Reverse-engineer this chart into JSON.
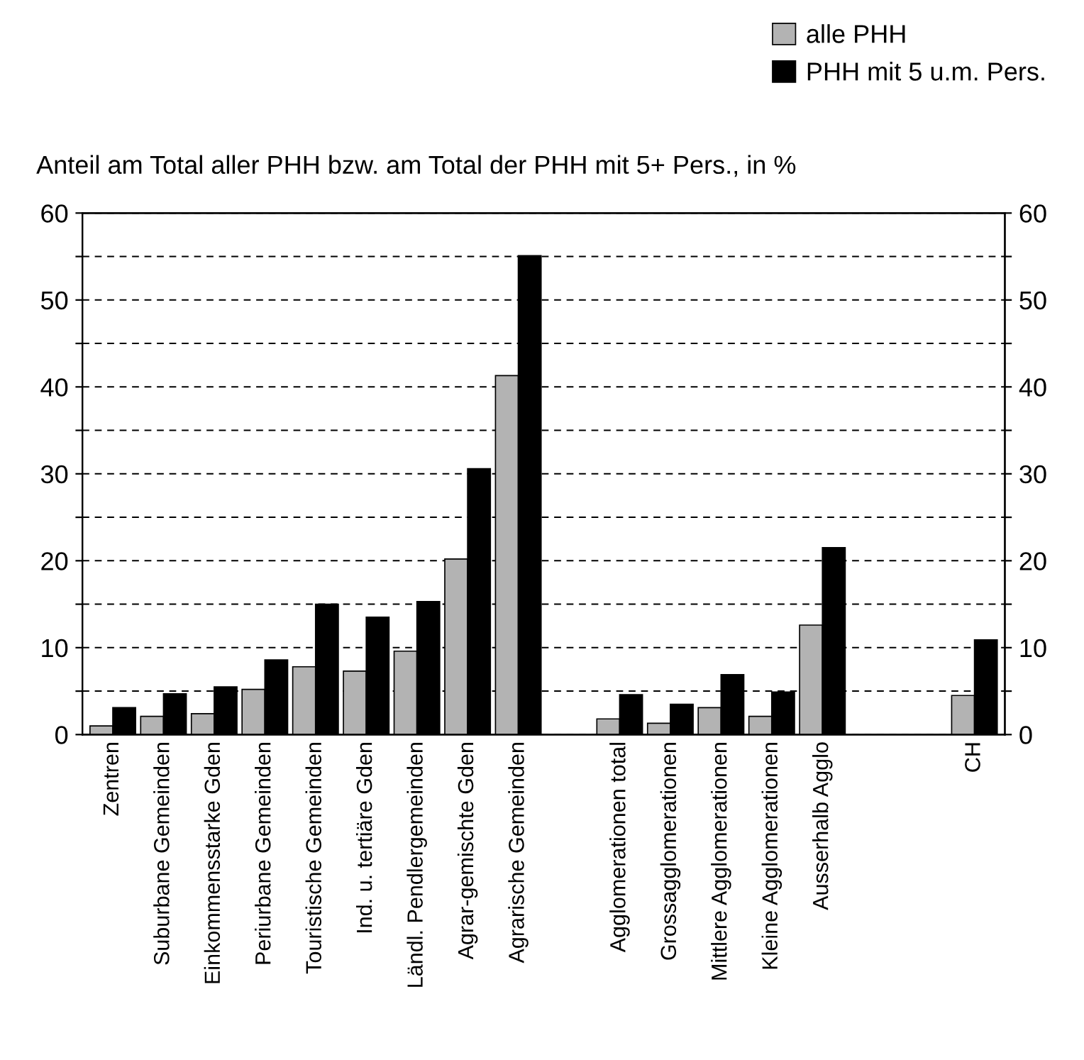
{
  "chart_data": {
    "type": "bar",
    "title": "Anteil am Total aller PHH bzw. am Total der PHH mit 5+ Pers., in %",
    "categories": [
      "Zentren",
      "Suburbane Gemeinden",
      "Einkommensstarke Gden",
      "Periurbane Gemeinden",
      "Touristische Gemeinden",
      "Ind. u. tertiäre Gden",
      "Ländl. Pendlergemeinden",
      "Agrar-gemischte Gden",
      "Agrarische Gemeinden",
      null,
      "Agglomerationen total",
      "Grossagglomerationen",
      "Mittlere Agglomerationen",
      "Kleine Agglomerationen",
      "Ausserhalb Agglo",
      null,
      null,
      "CH"
    ],
    "series": [
      {
        "name": "alle PHH",
        "color": "#b3b3b3",
        "values": [
          1.0,
          2.1,
          2.4,
          5.2,
          7.8,
          7.3,
          9.6,
          20.2,
          41.3,
          null,
          1.8,
          1.3,
          3.1,
          2.1,
          12.6,
          null,
          null,
          4.5
        ]
      },
      {
        "name": "PHH mit 5 u.m. Pers.",
        "color": "#000000",
        "values": [
          3.1,
          4.7,
          5.5,
          8.6,
          15.0,
          13.5,
          15.3,
          30.6,
          55.1,
          null,
          4.6,
          3.5,
          6.9,
          4.9,
          21.5,
          null,
          null,
          10.9
        ]
      }
    ],
    "ylim": [
      0,
      60
    ],
    "yticks": [
      0,
      {
        "value": 5,
        "label": null
      },
      10,
      {
        "value": 15,
        "label": null
      },
      20,
      {
        "value": 25,
        "label": null
      },
      30,
      {
        "value": 35,
        "label": null
      },
      40,
      {
        "value": 45,
        "label": null
      },
      50,
      {
        "value": 55,
        "label": null
      },
      60
    ],
    "y2lim": [
      0,
      60
    ],
    "y2ticks": [
      0,
      {
        "value": 5,
        "label": null
      },
      10,
      {
        "value": 15,
        "label": null
      },
      20,
      {
        "value": 25,
        "label": null
      },
      30,
      {
        "value": 35,
        "label": null
      },
      40,
      {
        "value": 45,
        "label": null
      },
      50,
      {
        "value": 55,
        "label": null
      },
      60
    ],
    "grid": "y",
    "legend": "top right"
  }
}
